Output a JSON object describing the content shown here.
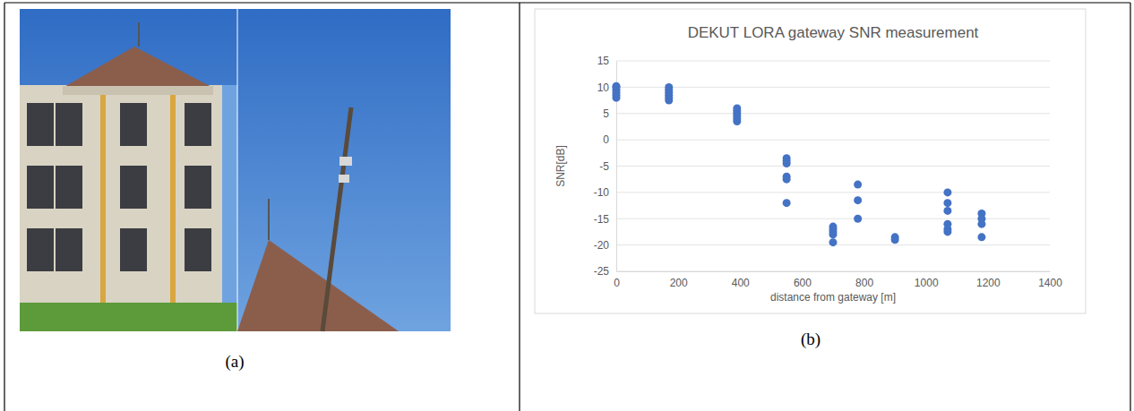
{
  "chart_data": {
    "type": "scatter",
    "title": "DEKUT LORA gateway SNR measurement",
    "xlabel": "distance from gateway [m]",
    "ylabel": "SNR[dB]",
    "x": [
      0,
      0,
      0,
      0,
      0,
      0,
      170,
      170,
      170,
      170,
      170,
      170,
      390,
      390,
      390,
      390,
      390,
      390,
      550,
      550,
      550,
      550,
      550,
      550,
      700,
      700,
      700,
      700,
      700,
      780,
      780,
      780,
      900,
      900,
      1070,
      1070,
      1070,
      1070,
      1070,
      1070,
      1180,
      1180,
      1180,
      1180
    ],
    "values": [
      8,
      8.5,
      9,
      9.5,
      10,
      10.2,
      7.5,
      8,
      8.5,
      9,
      9.5,
      10,
      3.5,
      4,
      4.5,
      5,
      5.5,
      6,
      -3.5,
      -4,
      -4.5,
      -7,
      -7.5,
      -12,
      -16.5,
      -17,
      -17.5,
      -18,
      -19.5,
      -8.5,
      -11.5,
      -15,
      -18.5,
      -19,
      -10,
      -12,
      -13.5,
      -16,
      -17,
      -17.5,
      -14,
      -15,
      -16,
      -18.5
    ],
    "color": "#4472c4",
    "marker": "circle",
    "xlim": [
      0,
      1400
    ],
    "xticks": [
      0,
      200,
      400,
      600,
      800,
      1000,
      1200,
      1400
    ],
    "ylim": [
      -25,
      15
    ],
    "yticks": [
      -25,
      -20,
      -15,
      -10,
      -5,
      0,
      5,
      10,
      15
    ],
    "grid": true
  },
  "captions": [
    "(a)",
    "(b)"
  ]
}
